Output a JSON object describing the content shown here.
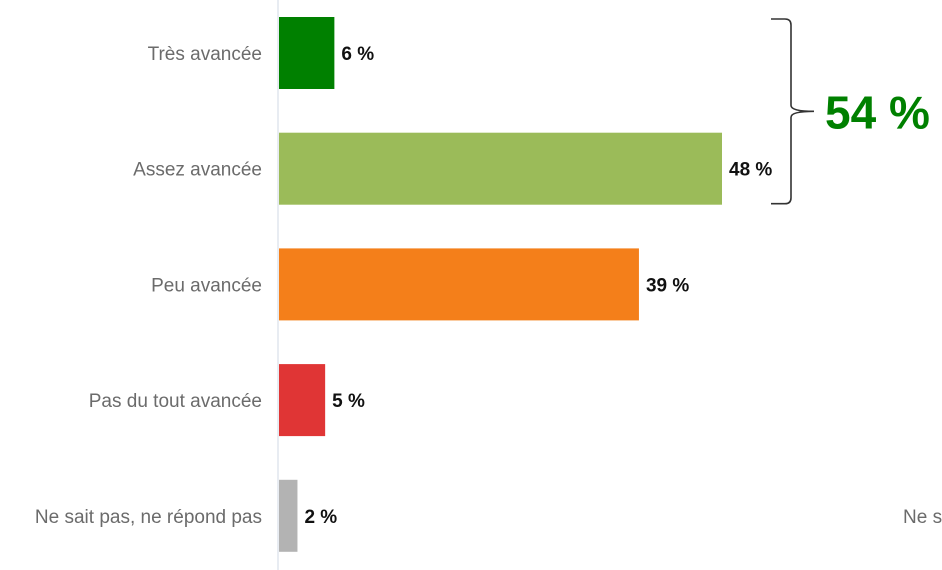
{
  "chart_data": {
    "type": "bar",
    "orientation": "horizontal",
    "categories": [
      "Très avancée",
      "Assez avancée",
      "Peu avancée",
      "Pas du tout avancée",
      "Ne sait pas, ne répond pas"
    ],
    "values": [
      6,
      48,
      39,
      5,
      2
    ],
    "value_labels": [
      "6 %",
      "48 %",
      "39 %",
      "5 %",
      "2 %"
    ],
    "colors": [
      "#008000",
      "#9bbb59",
      "#f47f1a",
      "#e03535",
      "#b3b3b3"
    ],
    "xlim": [
      0,
      100
    ],
    "grid": false,
    "bracket": {
      "from_category": 0,
      "to_category": 1,
      "label": "54 %",
      "color": "#008000"
    },
    "cut_off_text": "Ne s"
  }
}
